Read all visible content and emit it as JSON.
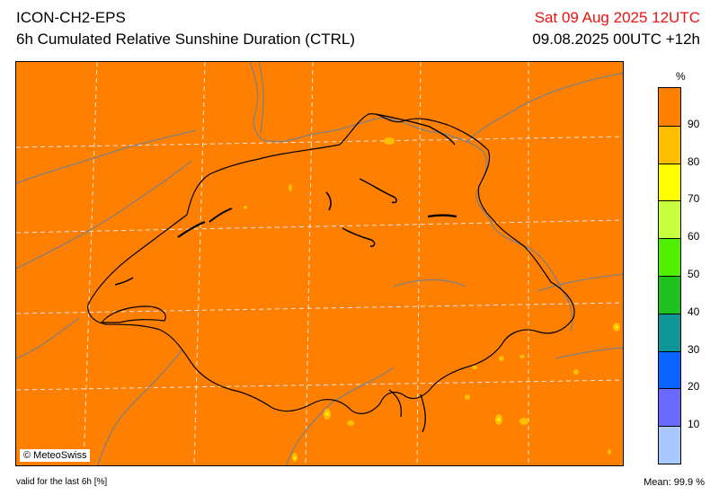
{
  "header": {
    "model": "ICON-CH2-EPS",
    "product": "6h Cumulated Relative Sunshine Duration (CTRL)",
    "valid_date": "Sat 09 Aug 2025 12UTC",
    "run_info": "09.08.2025 00UTC +12h"
  },
  "map": {
    "credit": "© MeteoSwiss",
    "field_color": "#ff7f00",
    "border_color": "#7a7a7a",
    "lake_color": "#000000",
    "grid_color": "#dddddd"
  },
  "legend": {
    "unit": "%",
    "ticks": [
      "90",
      "80",
      "70",
      "60",
      "50",
      "40",
      "30",
      "20",
      "10"
    ],
    "colors": [
      "#ff7f00",
      "#ffbf00",
      "#ffff00",
      "#c8ff3c",
      "#50f000",
      "#1ec31e",
      "#0f9696",
      "#0a64ff",
      "#6a6aff",
      "#a8c8ff"
    ]
  },
  "footer": {
    "valid_note": "valid for the last 6h [%]",
    "mean": "Mean:   99.9 %"
  }
}
